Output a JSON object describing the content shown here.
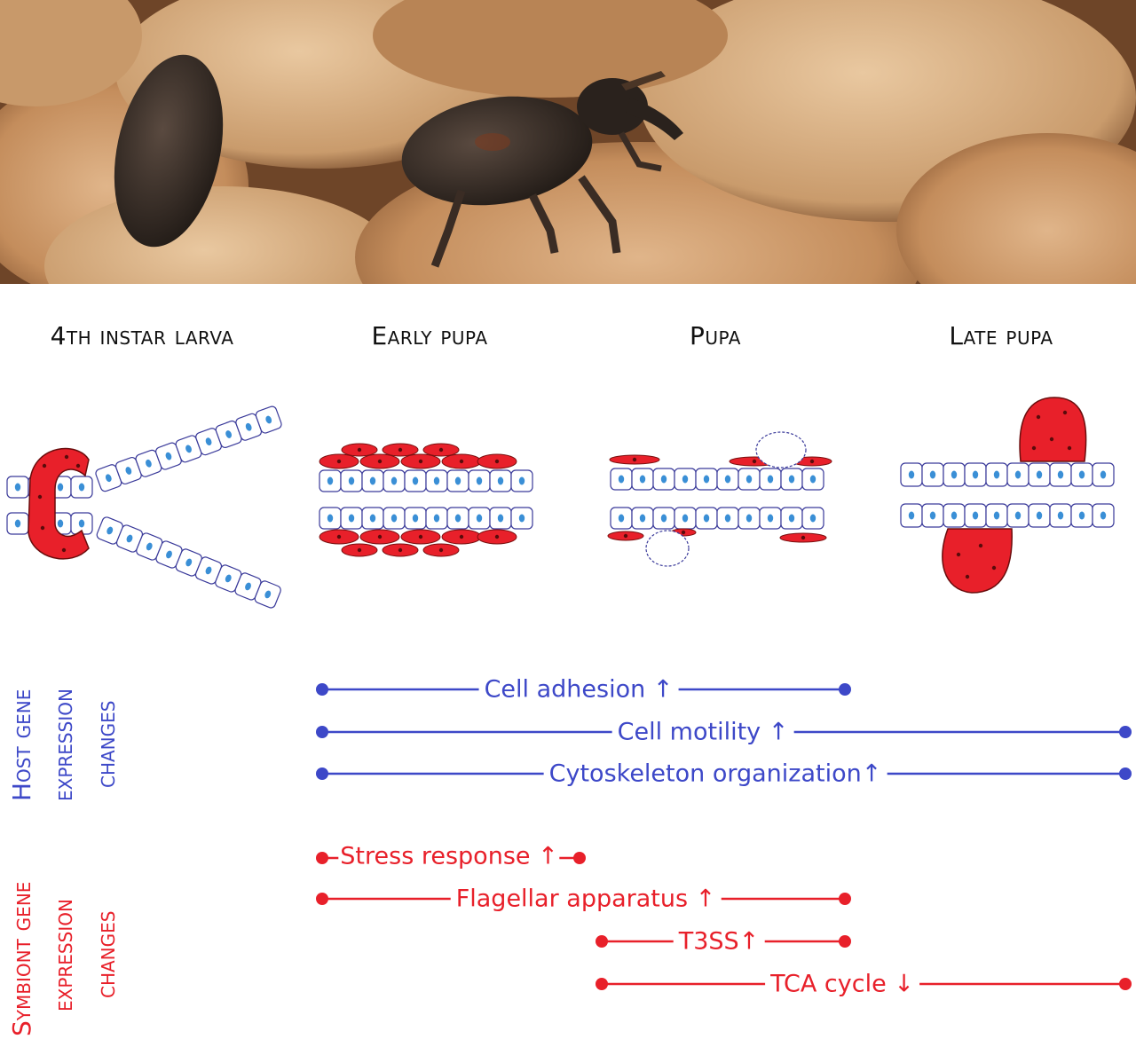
{
  "stages": [
    {
      "label": "4th instar larva"
    },
    {
      "label": "Early pupa"
    },
    {
      "label": "Pupa"
    },
    {
      "label": "Late pupa"
    }
  ],
  "host": {
    "title_line1": "Host gene",
    "title_line2": "expression",
    "title_line3": "changes",
    "color": "#3d48c8",
    "items": [
      {
        "label": "Cell adhesion ↑",
        "from_stage": "Early pupa",
        "to_stage": "Pupa"
      },
      {
        "label": "Cell motility ↑",
        "from_stage": "Early pupa",
        "to_stage": "Late pupa"
      },
      {
        "label": "Cytoskeleton organization↑",
        "from_stage": "Early pupa",
        "to_stage": "Late pupa"
      }
    ]
  },
  "symbiont": {
    "title_line1": "Symbiont gene",
    "title_line2": "expression",
    "title_line3": "changes",
    "color": "#e8202a",
    "items": [
      {
        "label": "Stress response ↑",
        "from_stage": "Early pupa",
        "to_stage": "Pupa"
      },
      {
        "label": "Flagellar apparatus ↑",
        "from_stage": "Early pupa",
        "to_stage": "Pupa"
      },
      {
        "label": "T3SS↑",
        "from_stage": "Pupa",
        "to_stage": "Pupa"
      },
      {
        "label": "TCA cycle ↓",
        "from_stage": "Pupa",
        "to_stage": "Late pupa"
      }
    ]
  },
  "colors": {
    "bacteriome_red": "#e8202a",
    "cell_outline": "#3a3a9a",
    "nucleus_blue": "#3a8fd6"
  }
}
